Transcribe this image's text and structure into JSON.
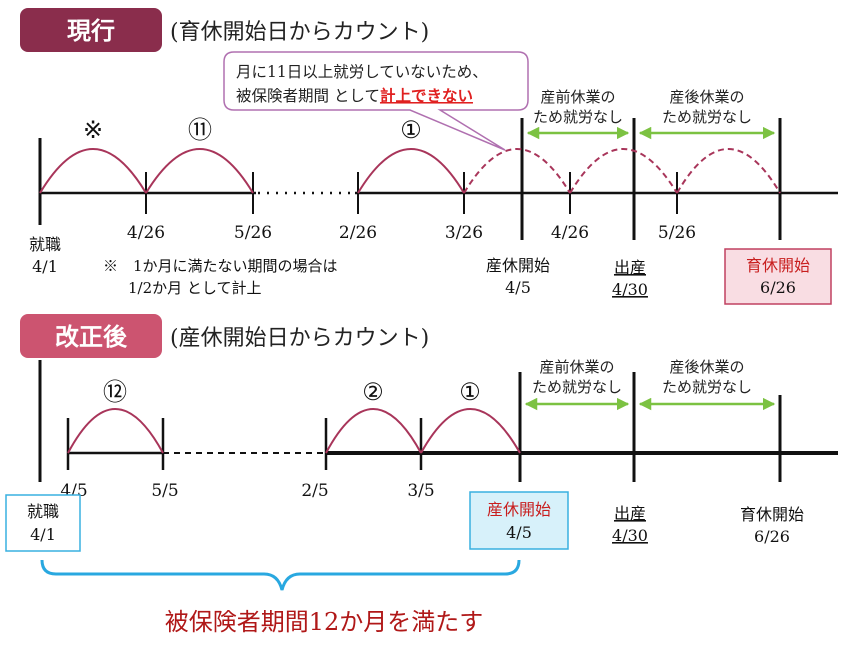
{
  "current": {
    "badge": "現行",
    "subtitle": "(育休開始日からカウント)",
    "callout": {
      "line1": "月に11日以上就労していないため、",
      "line2_prefix": "被保険者期間 として",
      "line2_emph": "計上できない"
    },
    "arc_labels": {
      "mark": "※",
      "eleven": "⑪",
      "one": "①"
    },
    "prenatal_label": [
      "産前休業の",
      "ため就労なし"
    ],
    "postnatal_label": [
      "産後休業の",
      "ため就労なし"
    ],
    "dates": [
      "4/26",
      "5/26",
      "2/26",
      "3/26",
      "4/26",
      "5/26"
    ],
    "employment": [
      "就職",
      "4/1"
    ],
    "note": [
      "※　1か月に満たない期間の場合は",
      "1/2か月 として計上"
    ],
    "maternity_start": [
      "産休開始",
      "4/5"
    ],
    "birth": [
      "出産",
      "4/30"
    ],
    "childcare_start": [
      "育休開始",
      "6/26"
    ]
  },
  "revised": {
    "badge": "改正後",
    "subtitle": "(産休開始日からカウント)",
    "arc_labels": {
      "twelve": "⑫",
      "two": "②",
      "one": "①"
    },
    "prenatal_label": [
      "産前休業の",
      "ため就労なし"
    ],
    "postnatal_label": [
      "産後休業の",
      "ため就労なし"
    ],
    "dates": [
      "4/5",
      "5/5",
      "2/5",
      "3/5"
    ],
    "employment": [
      "就職",
      "4/1"
    ],
    "maternity_start": [
      "産休開始",
      "4/5"
    ],
    "birth": [
      "出産",
      "4/30"
    ],
    "childcare_start": [
      "育休開始",
      "6/26"
    ]
  },
  "conclusion": "被保険者期間12か月を満たす",
  "colors": {
    "current_badge": "#8a2d4c",
    "revised_badge": "#cc5470",
    "arc": "#a8355a",
    "arrow": "#7cc242",
    "emphasis": "#e02020",
    "conclusion": "#b01818",
    "brace": "#29a8e0",
    "callout_border": "#b070b0",
    "childcare_box_fill": "#f9dde3",
    "childcare_box_border": "#c04060",
    "maternity_box_fill": "#d7f1fa",
    "maternity_box_border": "#39b0e0"
  }
}
